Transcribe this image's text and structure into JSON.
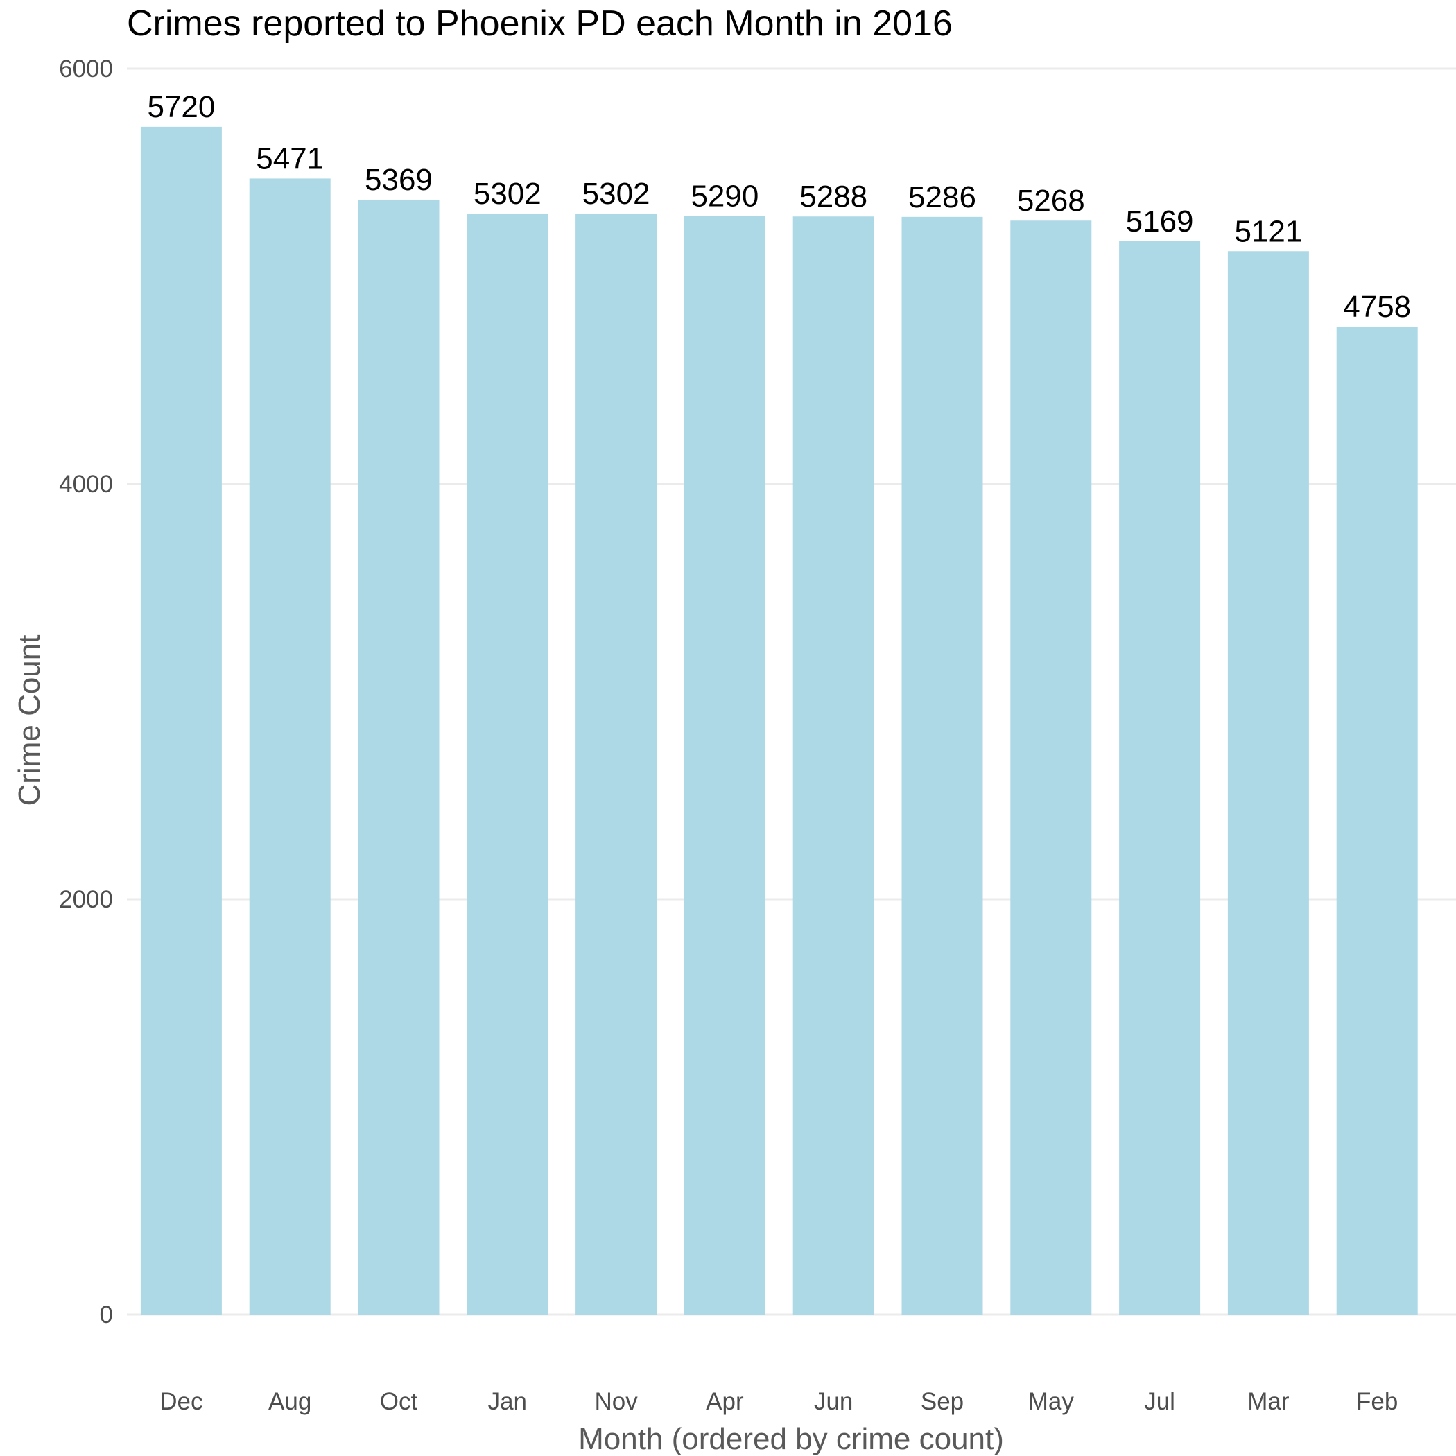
{
  "chart_data": {
    "type": "bar",
    "title": "Crimes reported to Phoenix PD each Month in 2016",
    "xlabel": "Month (ordered by crime count)",
    "ylabel": "Crime Count",
    "categories": [
      "Dec",
      "Aug",
      "Oct",
      "Jan",
      "Nov",
      "Apr",
      "Jun",
      "Sep",
      "May",
      "Jul",
      "Mar",
      "Feb"
    ],
    "values": [
      5720,
      5471,
      5369,
      5302,
      5302,
      5290,
      5288,
      5286,
      5268,
      5169,
      5121,
      4758
    ],
    "ylim": [
      0,
      6000
    ],
    "yticks": [
      0,
      2000,
      4000,
      6000
    ],
    "grid": true,
    "legend": "none",
    "colors": {
      "bar": "#add8e6",
      "grid": "#ebebeb",
      "title": "#000000",
      "axis_title": "#595959",
      "tick": "#4d4d4d",
      "data_label": "#000000"
    }
  }
}
